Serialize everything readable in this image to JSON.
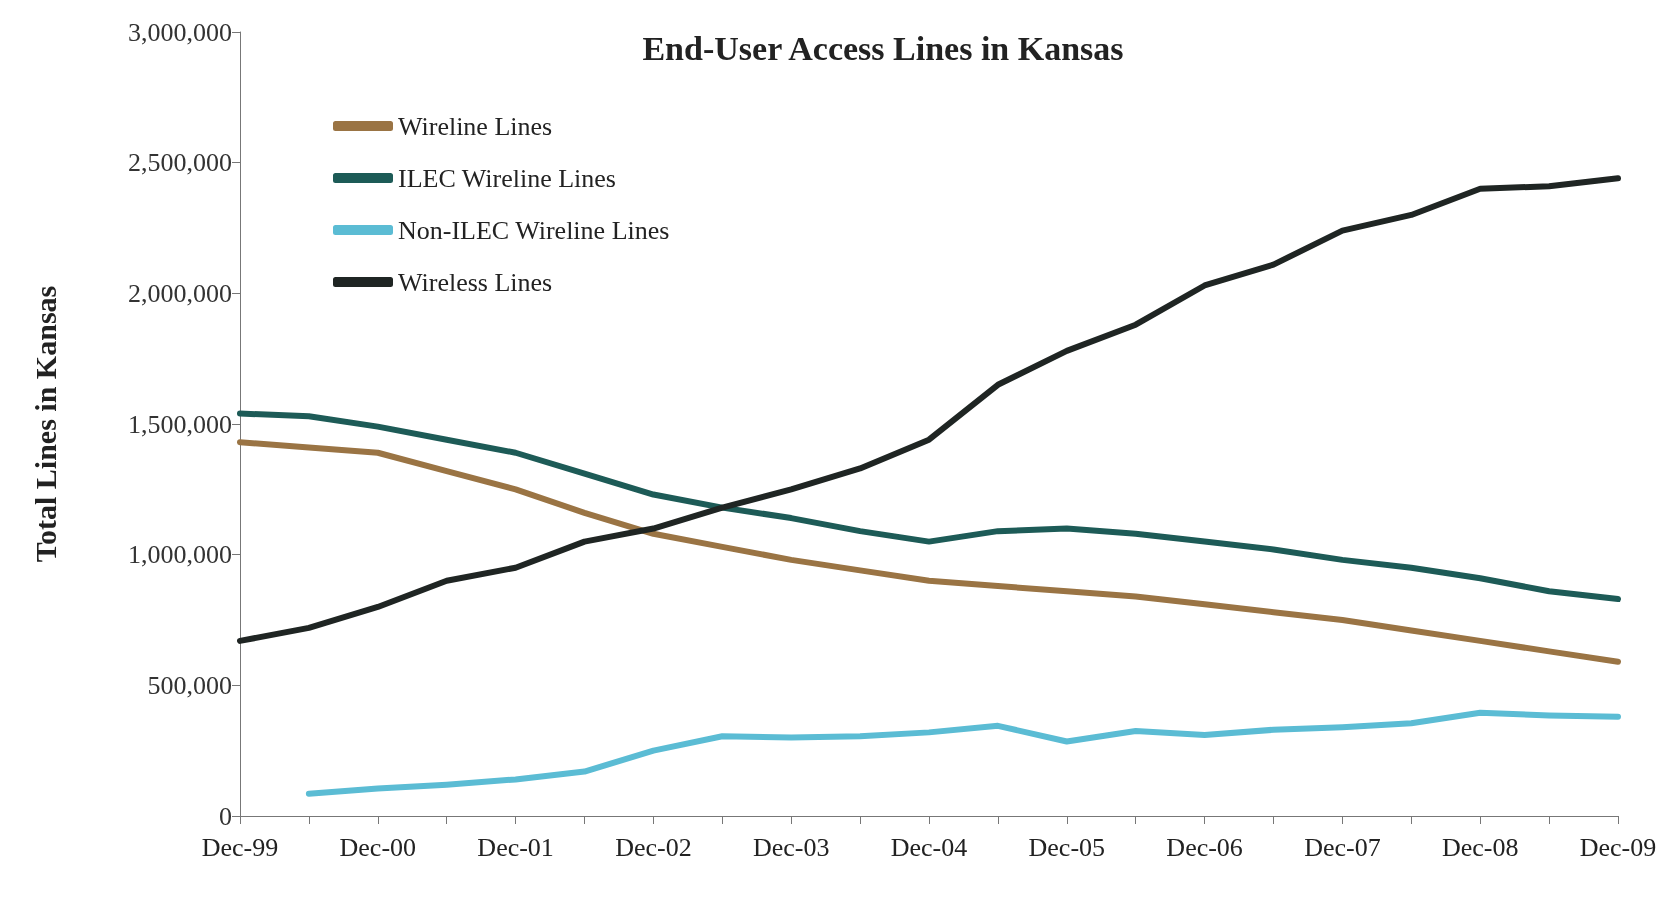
{
  "chart_data": {
    "type": "line",
    "title": "End-User Access Lines in Kansas",
    "ylabel": "Total Lines in Kansas",
    "categories": [
      "Dec-99",
      null,
      "Dec-00",
      null,
      "Dec-01",
      null,
      "Dec-02",
      null,
      "Dec-03",
      null,
      "Dec-04",
      null,
      "Dec-05",
      null,
      "Dec-06",
      null,
      "Dec-07",
      null,
      "Dec-08",
      null,
      "Dec-09"
    ],
    "series": [
      {
        "name": "Wireline Lines",
        "color": "#9a7444",
        "values": [
          1430000,
          1410000,
          1390000,
          1320000,
          1250000,
          1160000,
          1080000,
          1030000,
          980000,
          940000,
          900000,
          880000,
          860000,
          840000,
          810000,
          780000,
          750000,
          710000,
          670000,
          630000,
          590000
        ]
      },
      {
        "name": "ILEC Wireline Lines",
        "color": "#1d5b57",
        "values": [
          1540000,
          1530000,
          1490000,
          1440000,
          1390000,
          1310000,
          1230000,
          1180000,
          1140000,
          1090000,
          1050000,
          1090000,
          1100000,
          1080000,
          1050000,
          1020000,
          980000,
          950000,
          910000,
          860000,
          830000
        ]
      },
      {
        "name": "Non-ILEC Wireline Lines",
        "color": "#5bbcd4",
        "values": [
          null,
          85000,
          105000,
          120000,
          140000,
          170000,
          250000,
          305000,
          300000,
          305000,
          320000,
          345000,
          285000,
          325000,
          310000,
          330000,
          340000,
          355000,
          395000,
          385000,
          380000
        ]
      },
      {
        "name": "Wireless Lines",
        "color": "#1f2523",
        "values": [
          670000,
          720000,
          800000,
          900000,
          950000,
          1050000,
          1100000,
          1180000,
          1250000,
          1330000,
          1440000,
          1650000,
          1780000,
          1880000,
          2030000,
          2110000,
          2240000,
          2300000,
          2400000,
          2410000,
          2440000
        ]
      }
    ],
    "ylim": [
      0,
      3000000
    ],
    "yticks": [
      0,
      {
        "value": 500000,
        "label": "500,000"
      },
      {
        "value": 1000000,
        "label": "1,000,000"
      },
      {
        "value": 1500000,
        "label": "1,500,000"
      },
      {
        "value": 2000000,
        "label": "2,000,000"
      },
      {
        "value": 2500000,
        "label": "2,500,000"
      },
      {
        "value": 3000000,
        "label": "3,000,000"
      }
    ],
    "grid": false,
    "legend": "top left",
    "marker": "none",
    "line_style": "solid"
  }
}
